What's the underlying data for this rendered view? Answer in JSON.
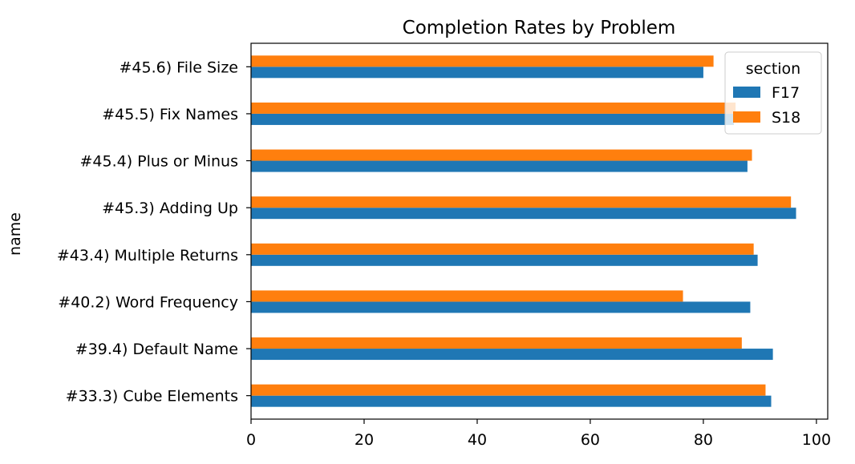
{
  "chart_data": {
    "type": "bar",
    "orientation": "horizontal",
    "title": "Completion Rates by Problem",
    "xlabel": "",
    "ylabel": "name",
    "xlim": [
      0,
      102
    ],
    "xticks": [
      0,
      20,
      40,
      60,
      80,
      100
    ],
    "grid": false,
    "categories": [
      "#33.3) Cube Elements",
      "#39.4) Default Name",
      "#40.2) Word Frequency",
      "#43.4) Multiple Returns",
      "#45.3) Adding Up",
      "#45.4) Plus or Minus",
      "#45.5) Fix Names",
      "#45.6) File Size"
    ],
    "series": [
      {
        "name": "F17",
        "color": "#1f77b4",
        "values": [
          92.0,
          92.3,
          88.3,
          89.6,
          96.4,
          87.8,
          85.4,
          80.0
        ]
      },
      {
        "name": "S18",
        "color": "#ff7f0e",
        "values": [
          91.0,
          86.8,
          76.4,
          88.9,
          95.5,
          88.6,
          85.7,
          81.8
        ]
      }
    ],
    "legend": {
      "title": "section",
      "placement": "top-right"
    }
  }
}
